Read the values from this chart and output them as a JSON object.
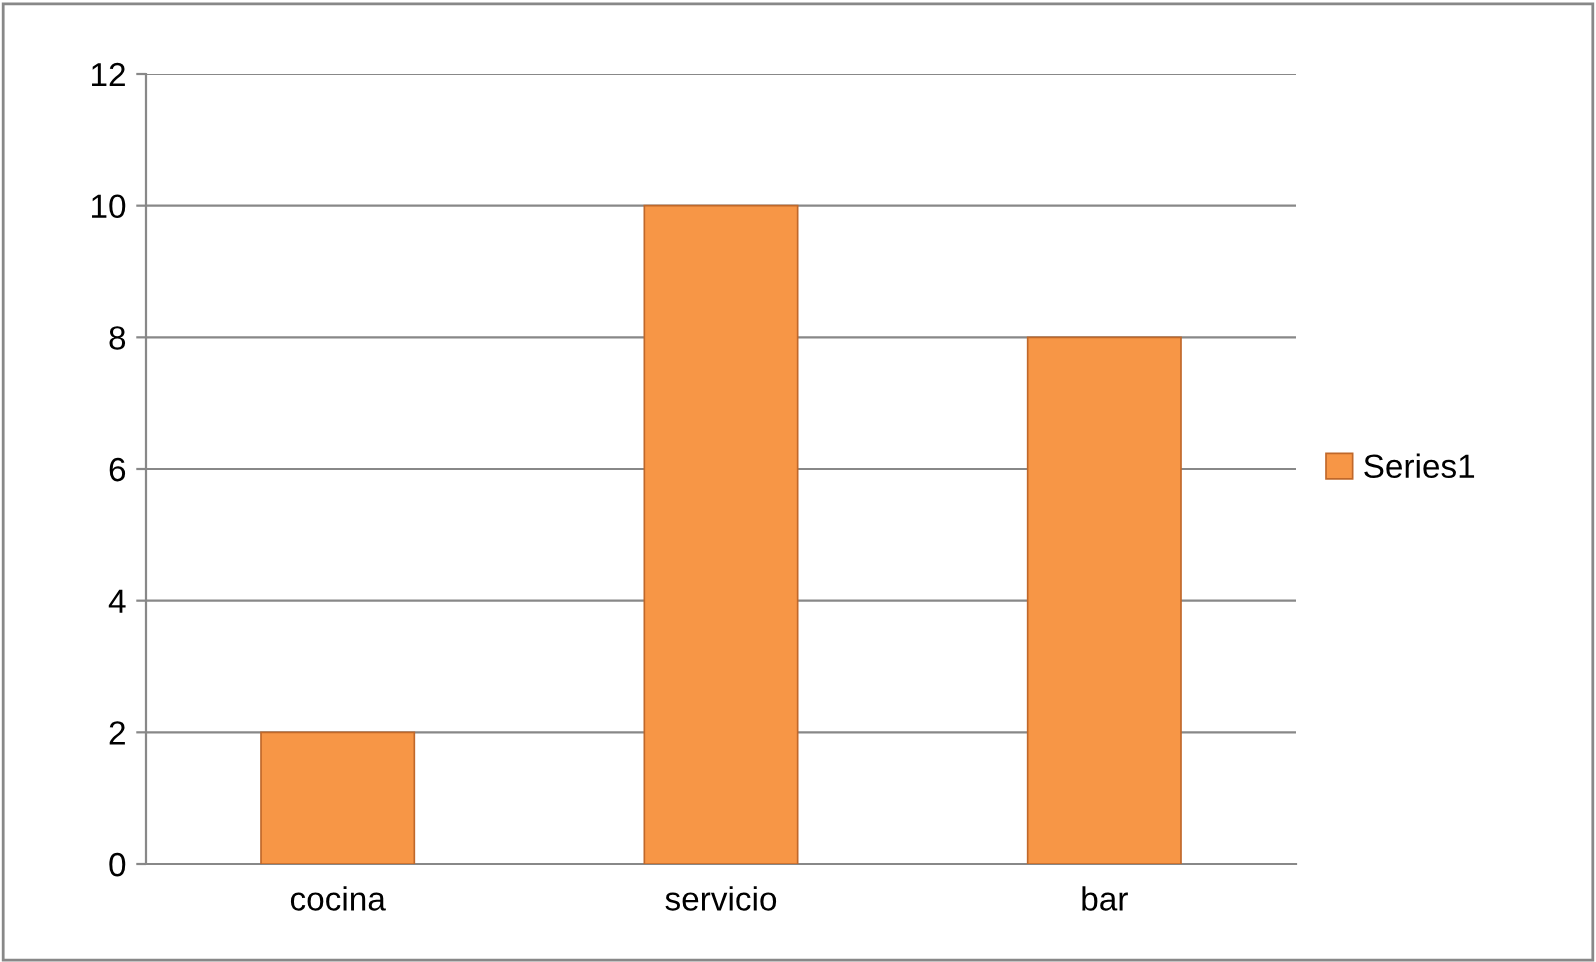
{
  "chart_data": {
    "type": "bar",
    "categories": [
      "cocina",
      "servicio",
      "bar"
    ],
    "series": [
      {
        "name": "Series1",
        "color": "#f79646",
        "values": [
          2,
          10,
          8
        ]
      }
    ],
    "ylim": [
      0,
      12
    ],
    "yticks": [
      0,
      2,
      4,
      6,
      8,
      10,
      12
    ],
    "grid": "y",
    "legend": "right"
  }
}
